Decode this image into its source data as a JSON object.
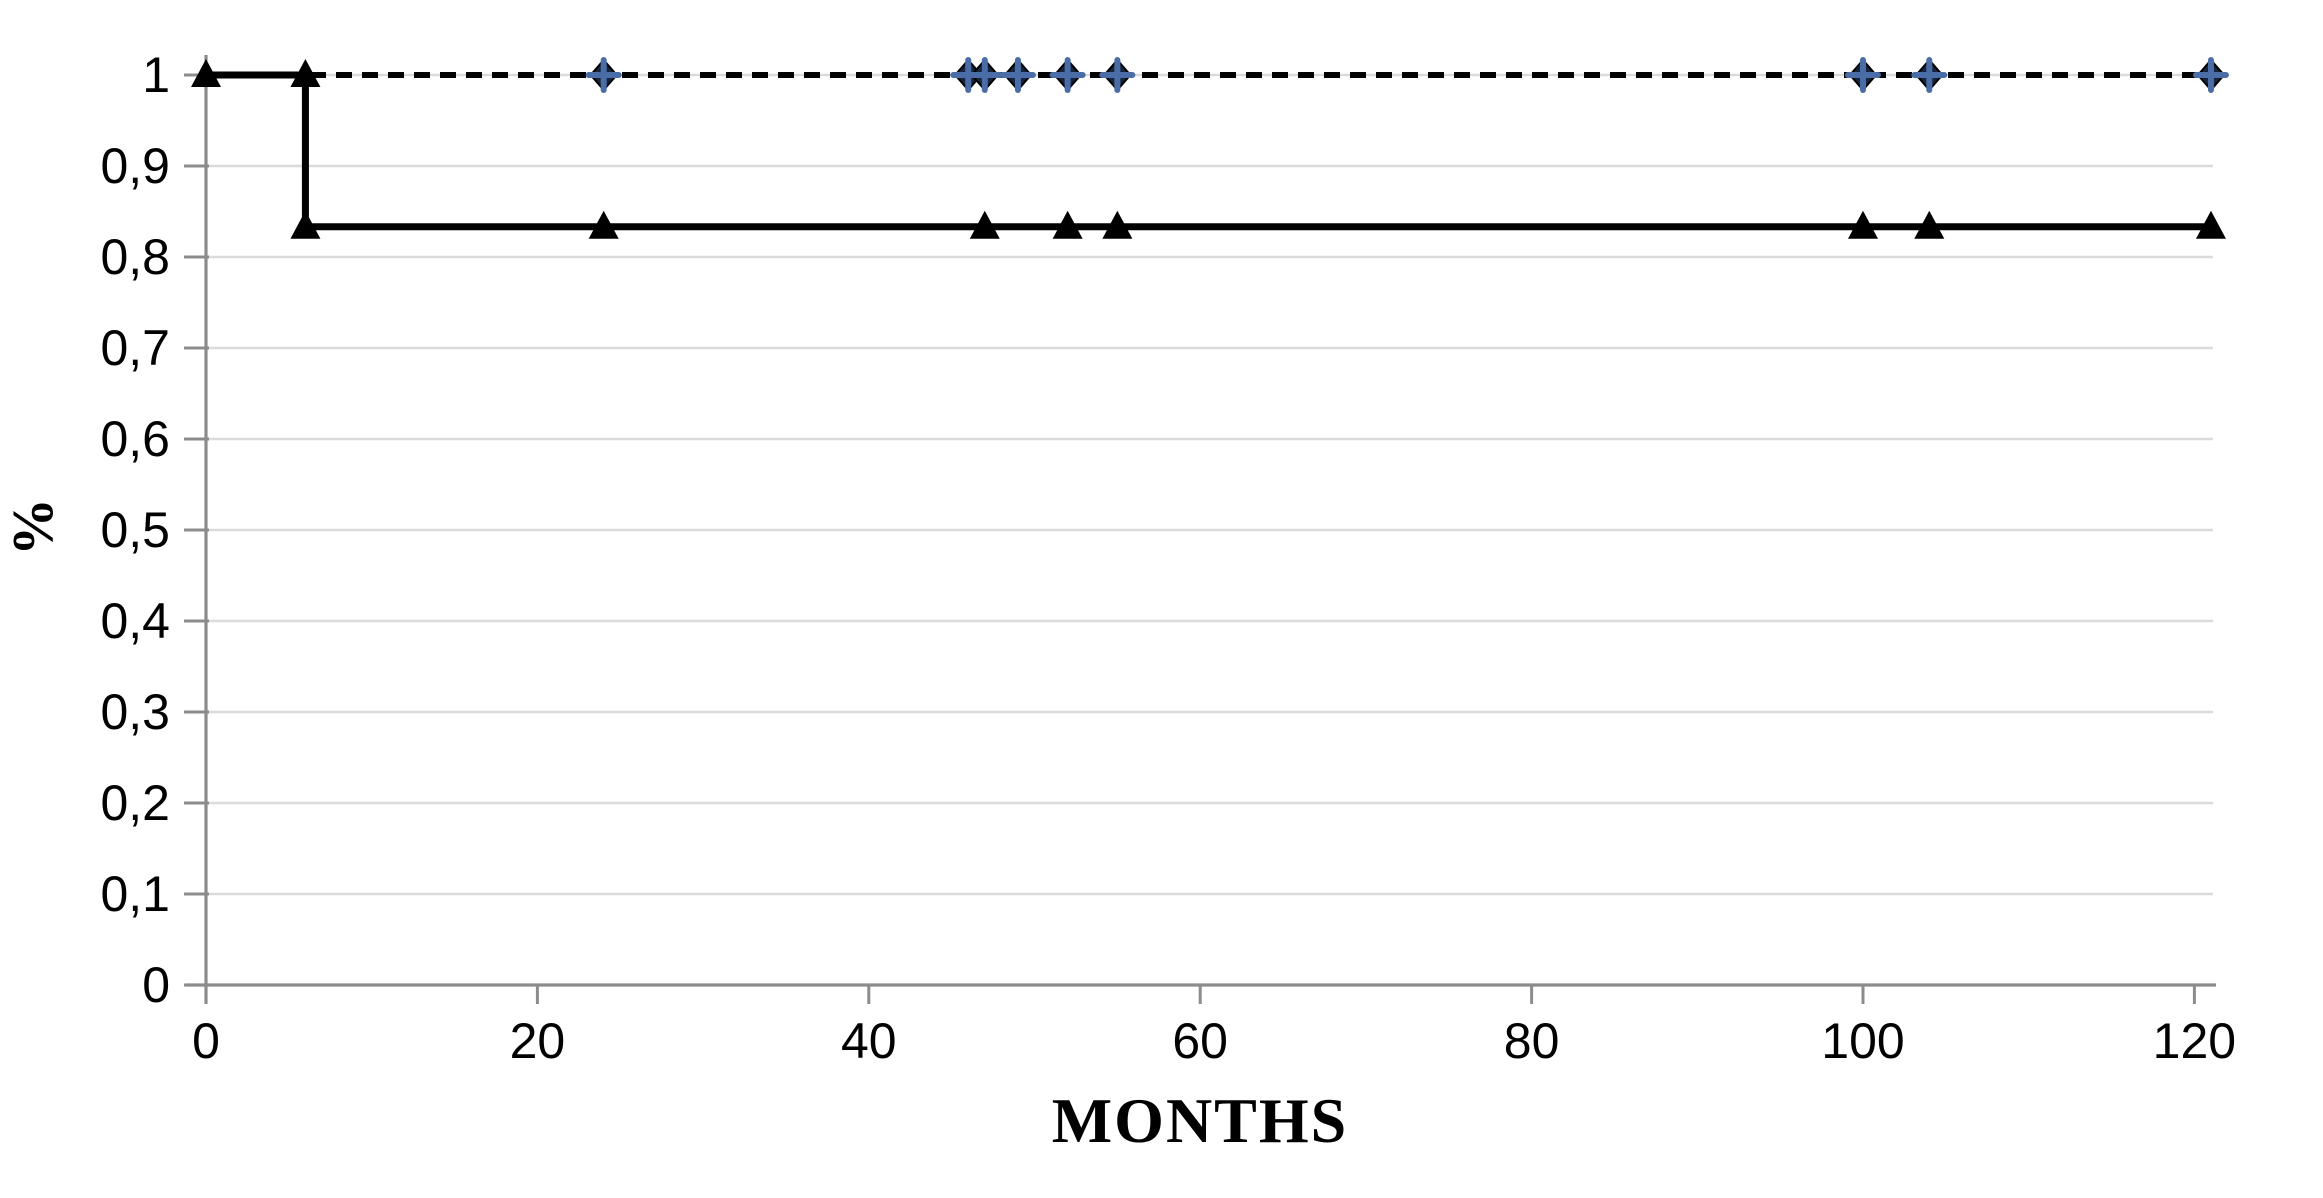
{
  "chart_data": {
    "type": "line",
    "subtype": "kaplan-meier-step",
    "title": "",
    "xlabel": "MONTHS",
    "ylabel": "%",
    "xlim": [
      0,
      121.3
    ],
    "ylim": [
      0,
      1
    ],
    "grid": "horizontal-light",
    "legend": "none",
    "x_ticks": {
      "values": [
        0,
        20,
        40,
        60,
        80,
        100,
        120
      ],
      "labels": [
        "0",
        "20",
        "40",
        "60",
        "80",
        "100",
        "120"
      ]
    },
    "y_ticks": {
      "values": [
        0,
        0.1,
        0.2,
        0.3,
        0.4,
        0.5,
        0.6,
        0.7,
        0.8,
        0.9,
        1
      ],
      "labels": [
        "0",
        "0,1",
        "0,2",
        "0,3",
        "0,4",
        "0,5",
        "0,6",
        "0,7",
        "0,8",
        "0,9",
        "1"
      ]
    },
    "series": [
      {
        "id": "dashed-curve-at-1",
        "line_style": "dashed",
        "line_color": "#000000",
        "line_width": 6,
        "marker": "diamond-plus",
        "marker_fill": "#16243D",
        "marker_cross_color": "#4A6DA7",
        "points": [
          [
            0,
            1
          ],
          [
            121,
            1
          ]
        ],
        "marker_points": [
          [
            24,
            1
          ],
          [
            46,
            1
          ],
          [
            47,
            1
          ],
          [
            49,
            1
          ],
          [
            52,
            1
          ],
          [
            55,
            1
          ],
          [
            100,
            1
          ],
          [
            104,
            1
          ],
          [
            121,
            1
          ]
        ]
      },
      {
        "id": "solid-step-curve",
        "line_style": "solid",
        "line_color": "#000000",
        "line_width": 7,
        "marker": "triangle",
        "marker_fill": "#000000",
        "points": [
          [
            0,
            1
          ],
          [
            6,
            1
          ],
          [
            6,
            0.8333
          ],
          [
            121,
            0.8333
          ]
        ],
        "marker_points": [
          [
            0,
            1
          ],
          [
            6,
            1
          ],
          [
            6,
            0.8333
          ],
          [
            24,
            0.8333
          ],
          [
            47,
            0.8333
          ],
          [
            52,
            0.8333
          ],
          [
            55,
            0.8333
          ],
          [
            100,
            0.8333
          ],
          [
            104,
            0.8333
          ],
          [
            121,
            0.8333
          ]
        ]
      }
    ]
  },
  "colors": {
    "axis": "#8C8C8C",
    "gridline": "#DBDBDB",
    "series_line": "#000000",
    "diamond_fill": "#16243D",
    "diamond_cross": "#4A6DA7",
    "background": "#FFFFFF"
  }
}
